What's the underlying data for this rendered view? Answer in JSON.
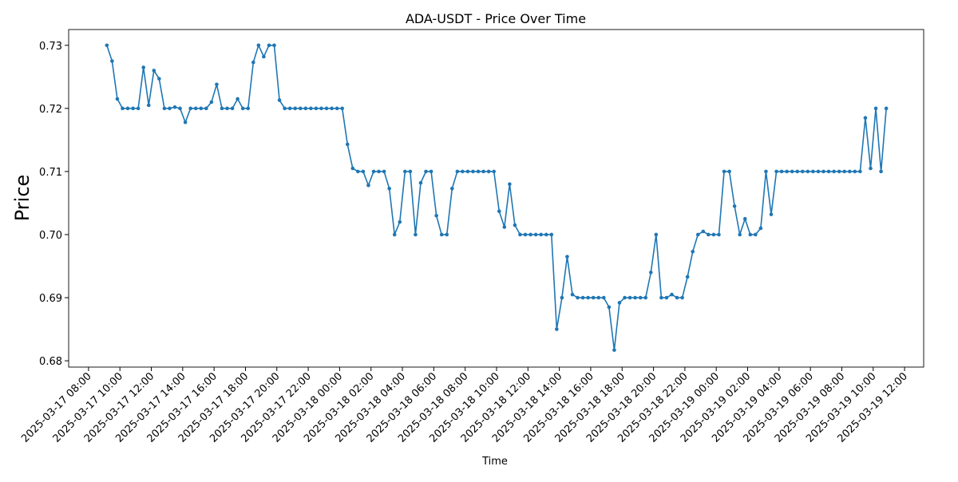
{
  "chart_data": {
    "type": "line",
    "title": "ADA-USDT - Price Over Time",
    "xlabel": "Time",
    "ylabel": "Price",
    "xlim": [
      "2025-03-17 06:44",
      "2025-03-19 13:13"
    ],
    "ylim": [
      0.679,
      0.7325
    ],
    "xticks": [
      "2025-03-17 08:00",
      "2025-03-17 10:00",
      "2025-03-17 12:00",
      "2025-03-17 14:00",
      "2025-03-17 16:00",
      "2025-03-17 18:00",
      "2025-03-17 20:00",
      "2025-03-17 22:00",
      "2025-03-18 00:00",
      "2025-03-18 02:00",
      "2025-03-18 04:00",
      "2025-03-18 06:00",
      "2025-03-18 08:00",
      "2025-03-18 10:00",
      "2025-03-18 12:00",
      "2025-03-18 14:00",
      "2025-03-18 16:00",
      "2025-03-18 18:00",
      "2025-03-18 20:00",
      "2025-03-18 22:00",
      "2025-03-19 00:00",
      "2025-03-19 02:00",
      "2025-03-19 04:00",
      "2025-03-19 06:00",
      "2025-03-19 08:00",
      "2025-03-19 10:00",
      "2025-03-19 12:00"
    ],
    "yticks": [
      0.68,
      0.69,
      {
        "value": 0.7,
        "label": "0.70"
      },
      0.71,
      0.72,
      0.73
    ],
    "grid": false,
    "x": [
      "2025-03-17 09:10",
      "2025-03-17 09:30",
      "2025-03-17 09:50",
      "2025-03-17 10:10",
      "2025-03-17 10:30",
      "2025-03-17 10:50",
      "2025-03-17 11:10",
      "2025-03-17 11:30",
      "2025-03-17 11:50",
      "2025-03-17 12:10",
      "2025-03-17 12:30",
      "2025-03-17 12:50",
      "2025-03-17 13:10",
      "2025-03-17 13:30",
      "2025-03-17 13:50",
      "2025-03-17 14:10",
      "2025-03-17 14:30",
      "2025-03-17 14:50",
      "2025-03-17 15:10",
      "2025-03-17 15:30",
      "2025-03-17 15:50",
      "2025-03-17 16:10",
      "2025-03-17 16:30",
      "2025-03-17 16:50",
      "2025-03-17 17:10",
      "2025-03-17 17:30",
      "2025-03-17 17:50",
      "2025-03-17 18:10",
      "2025-03-17 18:30",
      "2025-03-17 18:50",
      "2025-03-17 19:10",
      "2025-03-17 19:30",
      "2025-03-17 19:50",
      "2025-03-17 20:10",
      "2025-03-17 20:30",
      "2025-03-17 20:50",
      "2025-03-17 21:10",
      "2025-03-17 21:30",
      "2025-03-17 21:50",
      "2025-03-17 22:10",
      "2025-03-17 22:30",
      "2025-03-17 22:50",
      "2025-03-17 23:10",
      "2025-03-17 23:30",
      "2025-03-17 23:50",
      "2025-03-18 00:10",
      "2025-03-18 00:30",
      "2025-03-18 00:50",
      "2025-03-18 01:10",
      "2025-03-18 01:30",
      "2025-03-18 01:50",
      "2025-03-18 02:10",
      "2025-03-18 02:30",
      "2025-03-18 02:50",
      "2025-03-18 03:10",
      "2025-03-18 03:30",
      "2025-03-18 03:50",
      "2025-03-18 04:10",
      "2025-03-18 04:30",
      "2025-03-18 04:50",
      "2025-03-18 05:10",
      "2025-03-18 05:30",
      "2025-03-18 05:50",
      "2025-03-18 06:10",
      "2025-03-18 06:30",
      "2025-03-18 06:50",
      "2025-03-18 07:10",
      "2025-03-18 07:30",
      "2025-03-18 07:50",
      "2025-03-18 08:10",
      "2025-03-18 08:30",
      "2025-03-18 08:50",
      "2025-03-18 09:10",
      "2025-03-18 09:30",
      "2025-03-18 09:50",
      "2025-03-18 10:10",
      "2025-03-18 10:30",
      "2025-03-18 10:50",
      "2025-03-18 11:10",
      "2025-03-18 11:30",
      "2025-03-18 11:50",
      "2025-03-18 12:10",
      "2025-03-18 12:30",
      "2025-03-18 12:50",
      "2025-03-18 13:10",
      "2025-03-18 13:30",
      "2025-03-18 13:50",
      "2025-03-18 14:10",
      "2025-03-18 14:30",
      "2025-03-18 14:50",
      "2025-03-18 15:10",
      "2025-03-18 15:30",
      "2025-03-18 15:50",
      "2025-03-18 16:10",
      "2025-03-18 16:30",
      "2025-03-18 16:50",
      "2025-03-18 17:10",
      "2025-03-18 17:30",
      "2025-03-18 17:50",
      "2025-03-18 18:10",
      "2025-03-18 18:30",
      "2025-03-18 18:50",
      "2025-03-18 19:10",
      "2025-03-18 19:30",
      "2025-03-18 19:50",
      "2025-03-18 20:10",
      "2025-03-18 20:30",
      "2025-03-18 20:50",
      "2025-03-18 21:10",
      "2025-03-18 21:30",
      "2025-03-18 21:50",
      "2025-03-18 22:10",
      "2025-03-18 22:30",
      "2025-03-18 22:50",
      "2025-03-18 23:10",
      "2025-03-18 23:30",
      "2025-03-18 23:50",
      "2025-03-19 00:10",
      "2025-03-19 00:30",
      "2025-03-19 00:50",
      "2025-03-19 01:10",
      "2025-03-19 01:30",
      "2025-03-19 01:50",
      "2025-03-19 02:10",
      "2025-03-19 02:30",
      "2025-03-19 02:50",
      "2025-03-19 03:10",
      "2025-03-19 03:30",
      "2025-03-19 03:50",
      "2025-03-19 04:10",
      "2025-03-19 04:30",
      "2025-03-19 04:50",
      "2025-03-19 05:10",
      "2025-03-19 05:30",
      "2025-03-19 05:50",
      "2025-03-19 06:10",
      "2025-03-19 06:30",
      "2025-03-19 06:50",
      "2025-03-19 07:10",
      "2025-03-19 07:30",
      "2025-03-19 07:50",
      "2025-03-19 08:10",
      "2025-03-19 08:30",
      "2025-03-19 08:50",
      "2025-03-19 09:10",
      "2025-03-19 09:30",
      "2025-03-19 09:50",
      "2025-03-19 10:10",
      "2025-03-19 10:30",
      "2025-03-19 10:50"
    ],
    "series": [
      {
        "name": "ADA-USDT",
        "color": "#1f77b4",
        "values": [
          0.73,
          0.7275,
          0.7215,
          0.72,
          0.72,
          0.72,
          0.72,
          0.7265,
          0.7205,
          0.726,
          0.7247,
          0.72,
          0.72,
          0.7202,
          0.72,
          0.7178,
          0.72,
          0.72,
          0.72,
          0.72,
          0.721,
          0.7238,
          0.72,
          0.72,
          0.72,
          0.7215,
          0.72,
          0.72,
          0.7273,
          0.73,
          0.7282,
          0.73,
          0.73,
          0.7213,
          0.72,
          0.72,
          0.72,
          0.72,
          0.72,
          0.72,
          0.72,
          0.72,
          0.72,
          0.72,
          0.72,
          0.72,
          0.7143,
          0.7105,
          0.71,
          0.71,
          0.7078,
          0.71,
          0.71,
          0.71,
          0.7073,
          0.7,
          0.702,
          0.71,
          0.71,
          0.7,
          0.7082,
          0.71,
          0.71,
          0.703,
          0.7,
          0.7,
          0.7073,
          0.71,
          0.71,
          0.71,
          0.71,
          0.71,
          0.71,
          0.71,
          0.71,
          0.7037,
          0.7012,
          0.708,
          0.7015,
          0.7,
          0.7,
          0.7,
          0.7,
          0.7,
          0.7,
          0.7,
          0.685,
          0.69,
          0.6965,
          0.6905,
          0.69,
          0.69,
          0.69,
          0.69,
          0.69,
          0.69,
          0.6885,
          0.6817,
          0.6892,
          0.69,
          0.69,
          0.69,
          0.69,
          0.69,
          0.694,
          0.7,
          0.69,
          0.69,
          0.6905,
          0.69,
          0.69,
          0.6933,
          0.6973,
          0.7,
          0.7005,
          0.7,
          0.7,
          0.7,
          0.71,
          0.71,
          0.7045,
          0.7,
          0.7025,
          0.7,
          0.7,
          0.701,
          0.71,
          0.7032,
          0.71,
          0.71,
          0.71,
          0.71,
          0.71,
          0.71,
          0.71,
          0.71,
          0.71,
          0.71,
          0.71,
          0.71,
          0.71,
          0.71,
          0.71,
          0.71,
          0.71,
          0.7185,
          0.7105,
          0.72,
          0.71,
          0.72
        ]
      }
    ]
  }
}
